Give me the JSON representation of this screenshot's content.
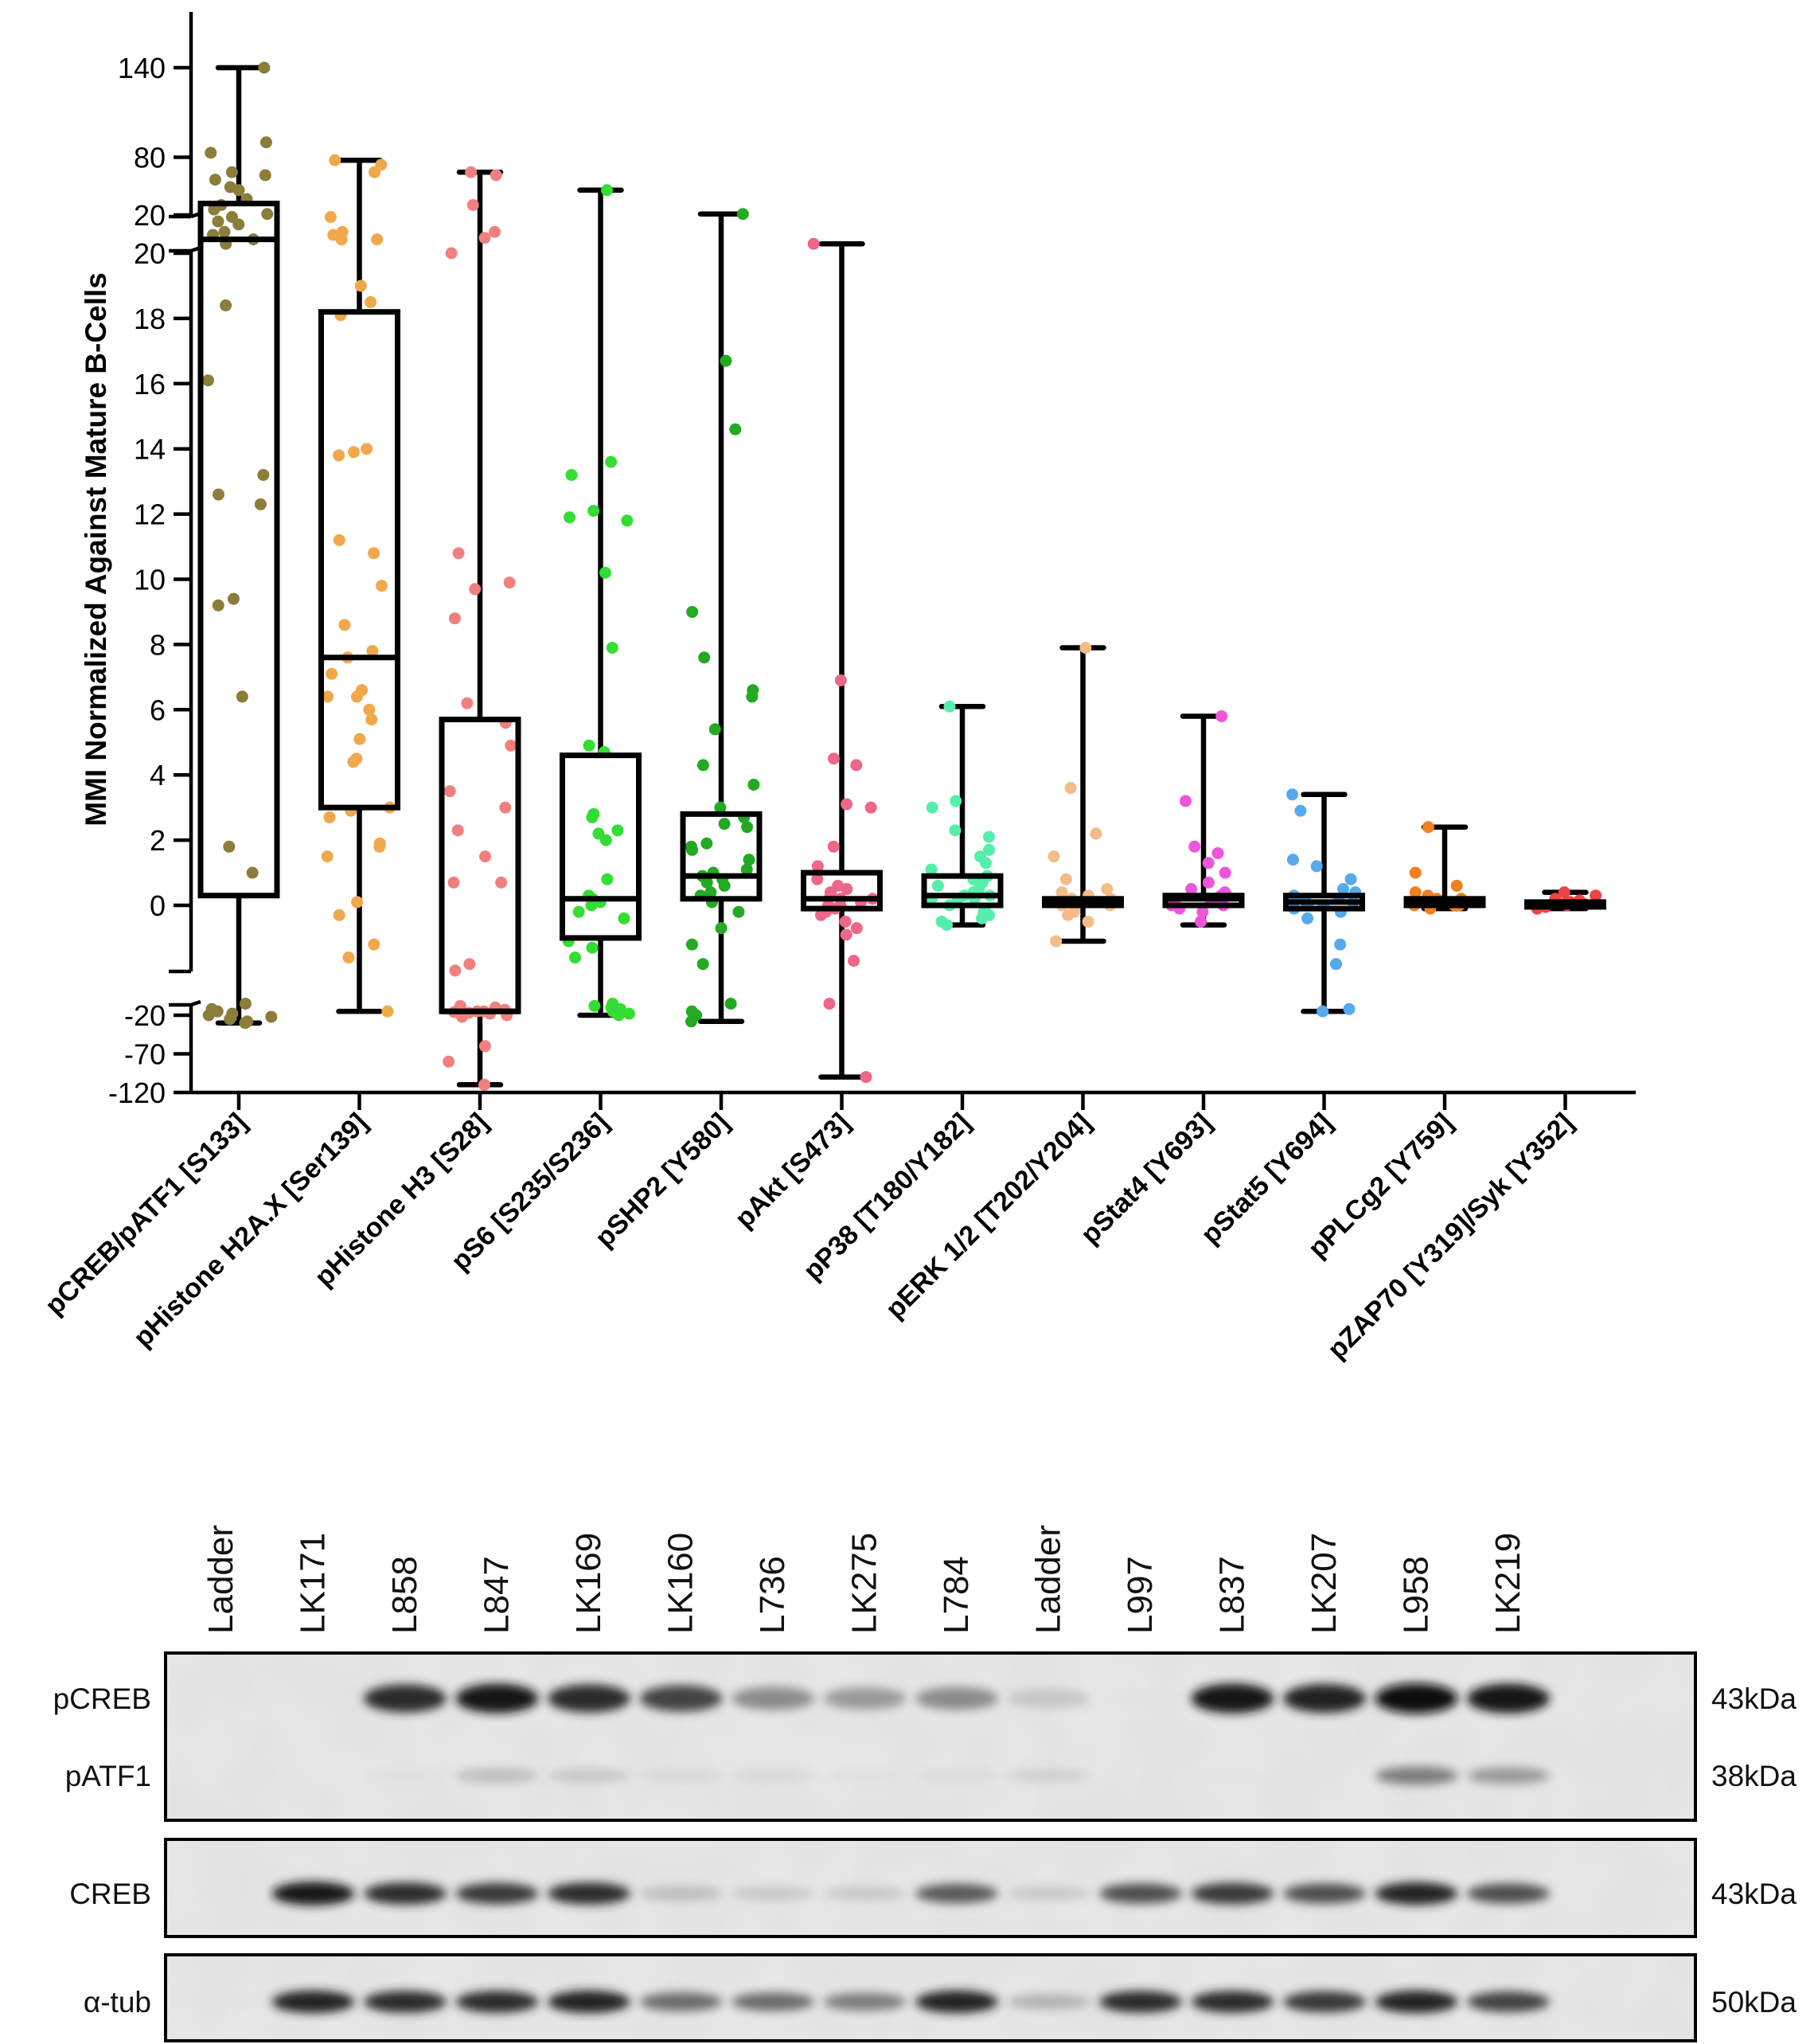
{
  "chart_data": {
    "type": "box",
    "title": "",
    "ylabel": "MMI Normalized  Against Mature B-Cells",
    "y_axis": {
      "broken": true,
      "segments": [
        {
          "name": "top",
          "range": [
            20,
            170
          ],
          "ticks": [
            "140",
            "80",
            "20"
          ]
        },
        {
          "name": "middle",
          "range": [
            -2,
            20
          ],
          "ticks": [
            "20",
            "18",
            "16",
            "14",
            "12",
            "10",
            "8",
            "6",
            "4",
            "2",
            "0"
          ]
        },
        {
          "name": "bottom",
          "range": [
            -120,
            -2
          ],
          "ticks": [
            "-20",
            "-70",
            "-120"
          ]
        }
      ]
    },
    "categories": [
      "pCREB/pATF1 [S133]",
      "pHistone H2A.X [Ser139]",
      "pHistone H3 [S28]",
      "pS6 [S235/S236]",
      "pSHP2 [Y580]",
      "pAkt [S473]",
      "pP38 [T180/Y182]",
      "pERK 1/2 [T202/Y204]",
      "pStat4 [Y693]",
      "pStat5 [Y694]",
      "pPLCg2 [Y759]",
      "pZAP70 [Y319]/Syk [Y352]"
    ],
    "series": [
      {
        "name": "pCREB/pATF1 [S133]",
        "color": "#8B7D3A",
        "box": {
          "min": -30,
          "q1": 0.3,
          "median": 25,
          "q3": 49,
          "max": 140
        },
        "points": [
          140,
          90,
          83,
          70,
          68,
          65,
          60,
          58,
          52,
          48,
          45,
          42,
          40,
          37,
          35,
          30,
          28,
          25,
          22,
          18.4,
          16.1,
          13.2,
          12.6,
          12.3,
          9.4,
          9.2,
          6.4,
          1.8,
          1.0,
          -5,
          -12,
          -15,
          -18,
          -20,
          -22,
          -25,
          -28,
          -30
        ]
      },
      {
        "name": "pHistone H2A.X [Ser139]",
        "color": "#F0A84A",
        "box": {
          "min": -15,
          "q1": 3.0,
          "median": 7.6,
          "q3": 18.2,
          "max": 78
        },
        "points": [
          78,
          75,
          70,
          40,
          30,
          28,
          25,
          25,
          19,
          18.5,
          18.1,
          13.9,
          13.8,
          14.0,
          11.2,
          10.8,
          9.8,
          8.6,
          7.8,
          7.6,
          7.1,
          6.6,
          6.4,
          6.4,
          6.0,
          5.7,
          5.1,
          4.5,
          4.4,
          3.0,
          2.9,
          2.7,
          1.9,
          1.8,
          1.5,
          0.1,
          -0.3,
          -1.2,
          -1.6,
          -15
        ]
      },
      {
        "name": "pHistone H3 [S28]",
        "color": "#F08080",
        "box": {
          "min": -110,
          "q1": -15,
          "median": -15,
          "q3": 5.7,
          "max": 70
        },
        "points": [
          70,
          68,
          48,
          30,
          26,
          20,
          10.8,
          9.9,
          9.7,
          8.8,
          6.2,
          5.6,
          4.9,
          3.5,
          3.0,
          2.3,
          1.5,
          0.7,
          0.7,
          -1.8,
          -2.0,
          -8,
          -10,
          -12,
          -13,
          -14,
          -15,
          -15,
          -16,
          -17,
          -18,
          -20,
          -22,
          -60,
          -80,
          -110
        ]
      },
      {
        "name": "pS6 [S235/S236]",
        "color": "#33DD33",
        "box": {
          "min": -20,
          "q1": -1.0,
          "median": 0.2,
          "q3": 4.6,
          "max": 58
        },
        "points": [
          58,
          13.6,
          13.2,
          12.1,
          11.8,
          11.9,
          10.2,
          7.9,
          4.9,
          4.7,
          2.8,
          2.7,
          2.3,
          2.2,
          2.0,
          0.8,
          0.3,
          0.2,
          0.1,
          0.0,
          -0.2,
          -0.4,
          -1.1,
          -1.3,
          -1.6,
          -5,
          -8,
          -10,
          -12,
          -15,
          -18,
          -20
        ]
      },
      {
        "name": "pSHP2 [Y580]",
        "color": "#22AA22",
        "box": {
          "min": -28,
          "q1": 0.2,
          "median": 0.9,
          "q3": 2.8,
          "max": 42
        },
        "points": [
          42,
          16.7,
          14.6,
          9.0,
          7.6,
          6.6,
          6.4,
          5.4,
          4.3,
          3.7,
          3.0,
          2.7,
          2.5,
          2.4,
          1.9,
          1.8,
          1.7,
          1.4,
          1.1,
          1.0,
          0.9,
          0.8,
          0.7,
          0.6,
          0.4,
          0.3,
          0.1,
          -0.2,
          -0.7,
          -1.2,
          -1.8,
          -5,
          -15,
          -20,
          -28
        ]
      },
      {
        "name": "pAkt [S473]",
        "color": "#EE6688",
        "box": {
          "min": -100,
          "q1": -0.1,
          "median": 0.2,
          "q3": 1.0,
          "max": 22
        },
        "points": [
          22,
          6.9,
          4.5,
          4.3,
          3.1,
          3.0,
          1.8,
          1.2,
          0.8,
          0.6,
          0.5,
          0.4,
          0.3,
          0.3,
          0.2,
          0.2,
          0.1,
          0.0,
          0.0,
          -0.1,
          -0.2,
          -0.3,
          -0.5,
          -0.7,
          -0.9,
          -1.7,
          -5,
          -100
        ]
      },
      {
        "name": "pP38 [T180/Y182]",
        "color": "#55EEAA",
        "box": {
          "min": -0.6,
          "q1": 0.0,
          "median": 0.3,
          "q3": 0.9,
          "max": 6.1
        },
        "points": [
          6.1,
          3.2,
          3.0,
          2.3,
          2.1,
          1.7,
          1.5,
          1.3,
          1.1,
          0.9,
          0.8,
          0.7,
          0.6,
          0.5,
          0.4,
          0.3,
          0.3,
          0.2,
          0.2,
          0.1,
          0.0,
          -0.1,
          -0.2,
          -0.3,
          -0.4,
          -0.5,
          -0.6
        ]
      },
      {
        "name": "pERK 1/2 [T202/Y204]",
        "color": "#F5BC88",
        "box": {
          "min": -1.1,
          "q1": 0.0,
          "median": 0.1,
          "q3": 0.2,
          "max": 7.9
        },
        "points": [
          7.9,
          3.6,
          2.2,
          1.5,
          0.8,
          0.5,
          0.4,
          0.3,
          0.2,
          0.2,
          0.1,
          0.1,
          0.0,
          0.0,
          -0.1,
          -0.2,
          -0.3,
          -0.5,
          -1.1
        ]
      },
      {
        "name": "pStat4 [Y693]",
        "color": "#EE55DD",
        "box": {
          "min": -0.6,
          "q1": 0.0,
          "median": 0.2,
          "q3": 0.3,
          "max": 5.8
        },
        "points": [
          5.8,
          3.2,
          1.8,
          1.6,
          1.3,
          1.0,
          0.7,
          0.5,
          0.4,
          0.3,
          0.3,
          0.2,
          0.2,
          0.1,
          0.1,
          0.0,
          0.0,
          -0.1,
          -0.2,
          -0.5
        ]
      },
      {
        "name": "pStat5 [Y694]",
        "color": "#55AAEE",
        "box": {
          "min": -15,
          "q1": -0.1,
          "median": 0.1,
          "q3": 0.3,
          "max": 3.4
        },
        "points": [
          3.4,
          2.9,
          1.4,
          1.2,
          0.8,
          0.5,
          0.4,
          0.3,
          0.2,
          0.2,
          0.1,
          0.0,
          0.0,
          -0.1,
          -0.2,
          -0.4,
          -1.2,
          -1.8,
          -12,
          -15
        ]
      },
      {
        "name": "pPLCg2 [Y759]",
        "color": "#F08020",
        "box": {
          "min": -0.1,
          "q1": 0.0,
          "median": 0.1,
          "q3": 0.2,
          "max": 2.4
        },
        "points": [
          2.4,
          1.0,
          0.6,
          0.4,
          0.3,
          0.2,
          0.2,
          0.1,
          0.1,
          0.0,
          0.0,
          0.0,
          -0.1
        ]
      },
      {
        "name": "pZAP70 [Y319]/Syk [Y352]",
        "color": "#EE4444",
        "box": {
          "min": -0.1,
          "q1": 0.0,
          "median": 0.05,
          "q3": 0.1,
          "max": 0.4
        },
        "points": [
          0.4,
          0.3,
          0.2,
          0.15,
          0.1,
          0.1,
          0.05,
          0.05,
          0.0,
          0.0,
          0.0,
          -0.05,
          -0.1
        ]
      }
    ]
  },
  "blot": {
    "lanes": [
      "Ladder",
      "LK171",
      "L858",
      "L847",
      "LK169",
      "LK160",
      "L736",
      "LK275",
      "L784",
      "Ladder",
      "L997",
      "L837",
      "LK207",
      "L958",
      "LK219"
    ],
    "panels": [
      {
        "name": "pCREB/pATF1",
        "rows": [
          "pCREB",
          "pATF1"
        ],
        "kda": [
          "43kDa",
          "38kDa"
        ],
        "intensity": [
          [
            0.0,
            0.03,
            0.85,
            0.95,
            0.85,
            0.75,
            0.5,
            0.45,
            0.5,
            0.25,
            0.05,
            0.95,
            0.9,
            1.0,
            0.95
          ],
          [
            0.0,
            0.02,
            0.08,
            0.3,
            0.25,
            0.15,
            0.15,
            0.08,
            0.12,
            0.2,
            0.0,
            0.05,
            0.0,
            0.55,
            0.45
          ]
        ]
      },
      {
        "name": "CREB",
        "rows": [
          "CREB"
        ],
        "kda": [
          "43kDa"
        ],
        "intensity": [
          [
            0.05,
            0.95,
            0.85,
            0.8,
            0.85,
            0.3,
            0.25,
            0.25,
            0.65,
            0.25,
            0.7,
            0.8,
            0.7,
            0.9,
            0.7
          ]
        ]
      },
      {
        "name": "a-tub",
        "rows": [
          "α-tub"
        ],
        "kda": [
          "50kDa"
        ],
        "intensity": [
          [
            0.05,
            0.9,
            0.85,
            0.85,
            0.9,
            0.6,
            0.6,
            0.55,
            0.9,
            0.35,
            0.85,
            0.85,
            0.8,
            0.9,
            0.75
          ]
        ]
      }
    ]
  }
}
